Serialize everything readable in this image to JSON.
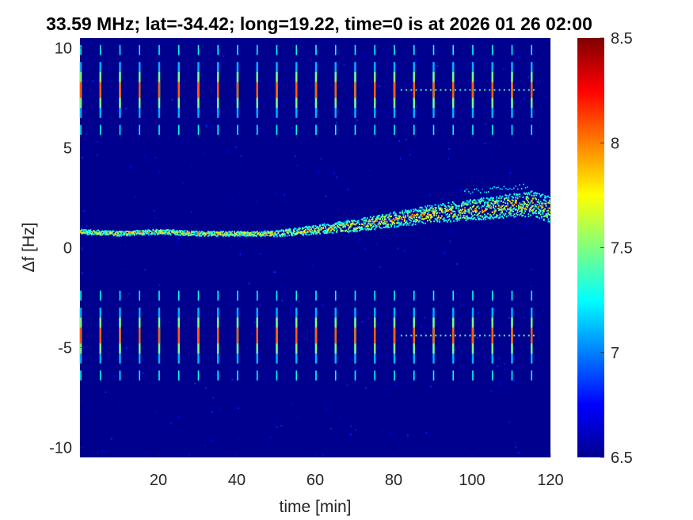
{
  "chart_data": {
    "type": "heatmap",
    "title": "33.59 MHz;  lat=-34.42; long=19.22, time=0 is at 2026 01 26 02:00",
    "xlabel": "time [min]",
    "ylabel": "Δf [Hz]",
    "xlim": [
      0,
      120
    ],
    "ylim": [
      -10.5,
      10.5
    ],
    "xticks": [
      20,
      40,
      60,
      80,
      100,
      120
    ],
    "yticks": [
      -10,
      -5,
      0,
      5,
      10
    ],
    "colorbar": {
      "clim": [
        6.5,
        8.5
      ],
      "ticks": [
        6.5,
        7,
        7.5,
        8,
        8.5
      ],
      "colormap": "jet"
    },
    "background_value": 6.55,
    "carrier_track": {
      "time_min": [
        0,
        10,
        20,
        30,
        40,
        50,
        60,
        70,
        80,
        90,
        100,
        110,
        115,
        120
      ],
      "delta_f_hz": [
        0.8,
        0.7,
        0.8,
        0.7,
        0.7,
        0.7,
        0.9,
        1.1,
        1.4,
        1.7,
        1.9,
        2.1,
        2.2,
        1.9
      ]
    },
    "faint_upper_trace": {
      "time_min": [
        98,
        104,
        110,
        114
      ],
      "delta_f_hz": [
        2.8,
        2.9,
        3.0,
        3.1
      ]
    },
    "sideband_bursts": {
      "period_min": 5,
      "first_time_min": 0.2,
      "upper_center_hz": 7.9,
      "lower_center_hz": -4.4,
      "dots_range_min": [
        82,
        116
      ]
    }
  }
}
